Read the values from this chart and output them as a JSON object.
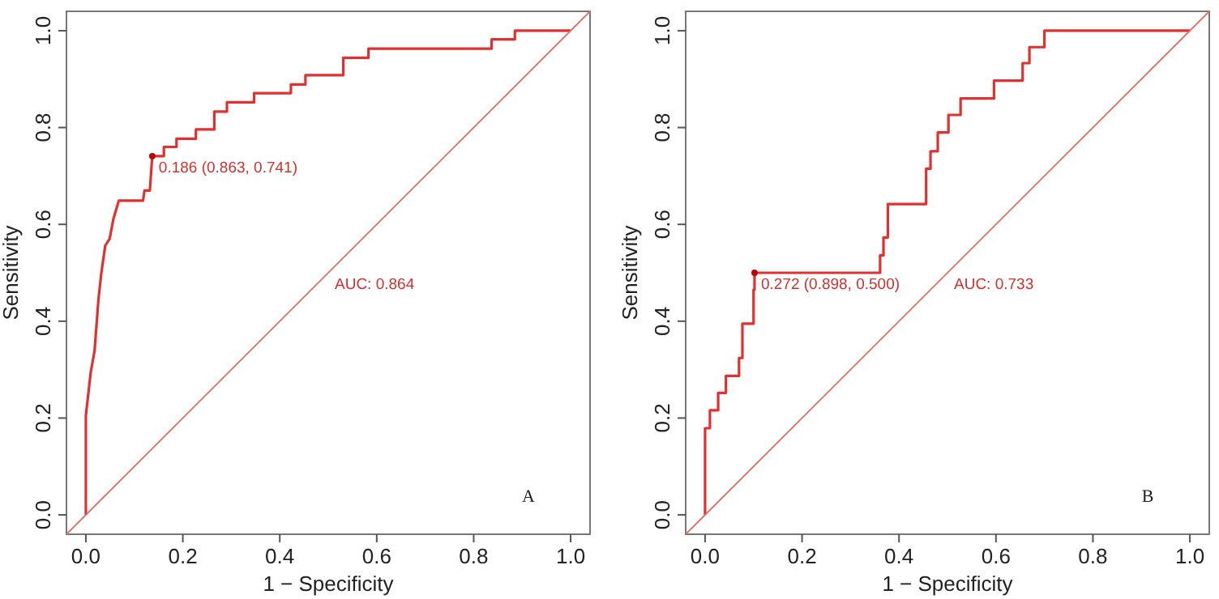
{
  "chart_data": [
    {
      "type": "line",
      "xlabel": "1 − Specificity",
      "ylabel": "Sensitivity",
      "xlim": [
        -0.04,
        1.04
      ],
      "ylim": [
        -0.04,
        1.04
      ],
      "xticks": [
        {
          "value": 0,
          "label": "0.0"
        },
        {
          "value": 0.2,
          "label": "0.2"
        },
        {
          "value": 0.4,
          "label": "0.4"
        },
        {
          "value": 0.6,
          "label": "0.6"
        },
        {
          "value": 0.8,
          "label": "0.8"
        },
        {
          "value": 1,
          "label": "1.0"
        }
      ],
      "yticks": [
        {
          "value": 0,
          "label": "0.0"
        },
        {
          "value": 0.2,
          "label": "0.2"
        },
        {
          "value": 0.4,
          "label": "0.4"
        },
        {
          "value": 0.6,
          "label": "0.6"
        },
        {
          "value": 0.8,
          "label": "0.8"
        },
        {
          "value": 1,
          "label": "1.0"
        }
      ],
      "grid": false,
      "series": [
        {
          "color": "#e03030",
          "marker": "none",
          "x": [
            0,
            0,
            0.01,
            0.018,
            0.026,
            0.032,
            0.04,
            0.049,
            0.057,
            0.068,
            0.118,
            0.121,
            0.132,
            0.137,
            0.161,
            0.161,
            0.187,
            0.187,
            0.227,
            0.227,
            0.265,
            0.265,
            0.291,
            0.291,
            0.347,
            0.347,
            0.423,
            0.423,
            0.453,
            0.453,
            0.531,
            0.531,
            0.583,
            0.583,
            0.837,
            0.837,
            0.885,
            0.885,
            1
          ],
          "values": [
            0,
            0.205,
            0.294,
            0.339,
            0.445,
            0.5,
            0.556,
            0.57,
            0.612,
            0.649,
            0.649,
            0.67,
            0.67,
            0.741,
            0.741,
            0.76,
            0.76,
            0.777,
            0.777,
            0.796,
            0.796,
            0.833,
            0.833,
            0.852,
            0.852,
            0.871,
            0.871,
            0.889,
            0.889,
            0.908,
            0.908,
            0.944,
            0.944,
            0.963,
            0.963,
            0.982,
            0.982,
            1,
            1
          ]
        },
        {
          "type": "line",
          "color": "#e07070",
          "marker": "none",
          "x": [
            -0.04,
            1.04
          ],
          "values": [
            -0.04,
            1.04
          ]
        },
        {
          "type": "scatter",
          "color": "#c00000",
          "marker": "circle",
          "x": [
            0.137
          ],
          "values": [
            0.741
          ]
        }
      ],
      "annotations": [
        {
          "text": "0.186 (0.863, 0.741)",
          "x": 0.137,
          "y": 0.741
        },
        {
          "text": "AUC: 0.864",
          "x": 0.5,
          "y": 0.5
        },
        "A"
      ]
    },
    {
      "type": "line",
      "xlabel": "1 − Specificity",
      "ylabel": "Sensitivity",
      "xlim": [
        -0.04,
        1.04
      ],
      "ylim": [
        -0.04,
        1.04
      ],
      "xticks": [
        {
          "value": 0,
          "label": "0.0"
        },
        {
          "value": 0.2,
          "label": "0.2"
        },
        {
          "value": 0.4,
          "label": "0.4"
        },
        {
          "value": 0.6,
          "label": "0.6"
        },
        {
          "value": 0.8,
          "label": "0.8"
        },
        {
          "value": 1,
          "label": "1.0"
        }
      ],
      "yticks": [
        {
          "value": 0,
          "label": "0.0"
        },
        {
          "value": 0.2,
          "label": "0.2"
        },
        {
          "value": 0.4,
          "label": "0.4"
        },
        {
          "value": 0.6,
          "label": "0.6"
        },
        {
          "value": 0.8,
          "label": "0.8"
        },
        {
          "value": 1,
          "label": "1.0"
        }
      ],
      "grid": false,
      "series": [
        {
          "color": "#e03030",
          "marker": "none",
          "x": [
            0,
            0,
            0.01,
            0.01,
            0.027,
            0.027,
            0.043,
            0.043,
            0.07,
            0.07,
            0.077,
            0.077,
            0.1,
            0.1,
            0.102,
            0.102,
            0.361,
            0.361,
            0.368,
            0.368,
            0.377,
            0.377,
            0.456,
            0.456,
            0.465,
            0.465,
            0.48,
            0.48,
            0.502,
            0.502,
            0.527,
            0.527,
            0.596,
            0.596,
            0.655,
            0.655,
            0.669,
            0.669,
            0.7,
            0.7,
            1
          ],
          "values": [
            0,
            0.179,
            0.179,
            0.216,
            0.216,
            0.252,
            0.252,
            0.287,
            0.287,
            0.324,
            0.324,
            0.395,
            0.395,
            0.465,
            0.465,
            0.5,
            0.5,
            0.536,
            0.536,
            0.573,
            0.573,
            0.642,
            0.642,
            0.715,
            0.715,
            0.751,
            0.751,
            0.79,
            0.79,
            0.826,
            0.826,
            0.86,
            0.86,
            0.897,
            0.897,
            0.933,
            0.933,
            0.966,
            0.966,
            1,
            1
          ]
        },
        {
          "type": "line",
          "color": "#e07070",
          "marker": "none",
          "x": [
            -0.04,
            1.04
          ],
          "values": [
            -0.04,
            1.04
          ]
        },
        {
          "type": "scatter",
          "color": "#c00000",
          "marker": "circle",
          "x": [
            0.102
          ],
          "values": [
            0.5
          ]
        }
      ],
      "annotations": [
        {
          "text": "0.272 (0.898, 0.500)",
          "x": 0.102,
          "y": 0.5
        },
        {
          "text": "AUC: 0.733",
          "x": 0.5,
          "y": 0.5
        },
        "B"
      ]
    }
  ]
}
